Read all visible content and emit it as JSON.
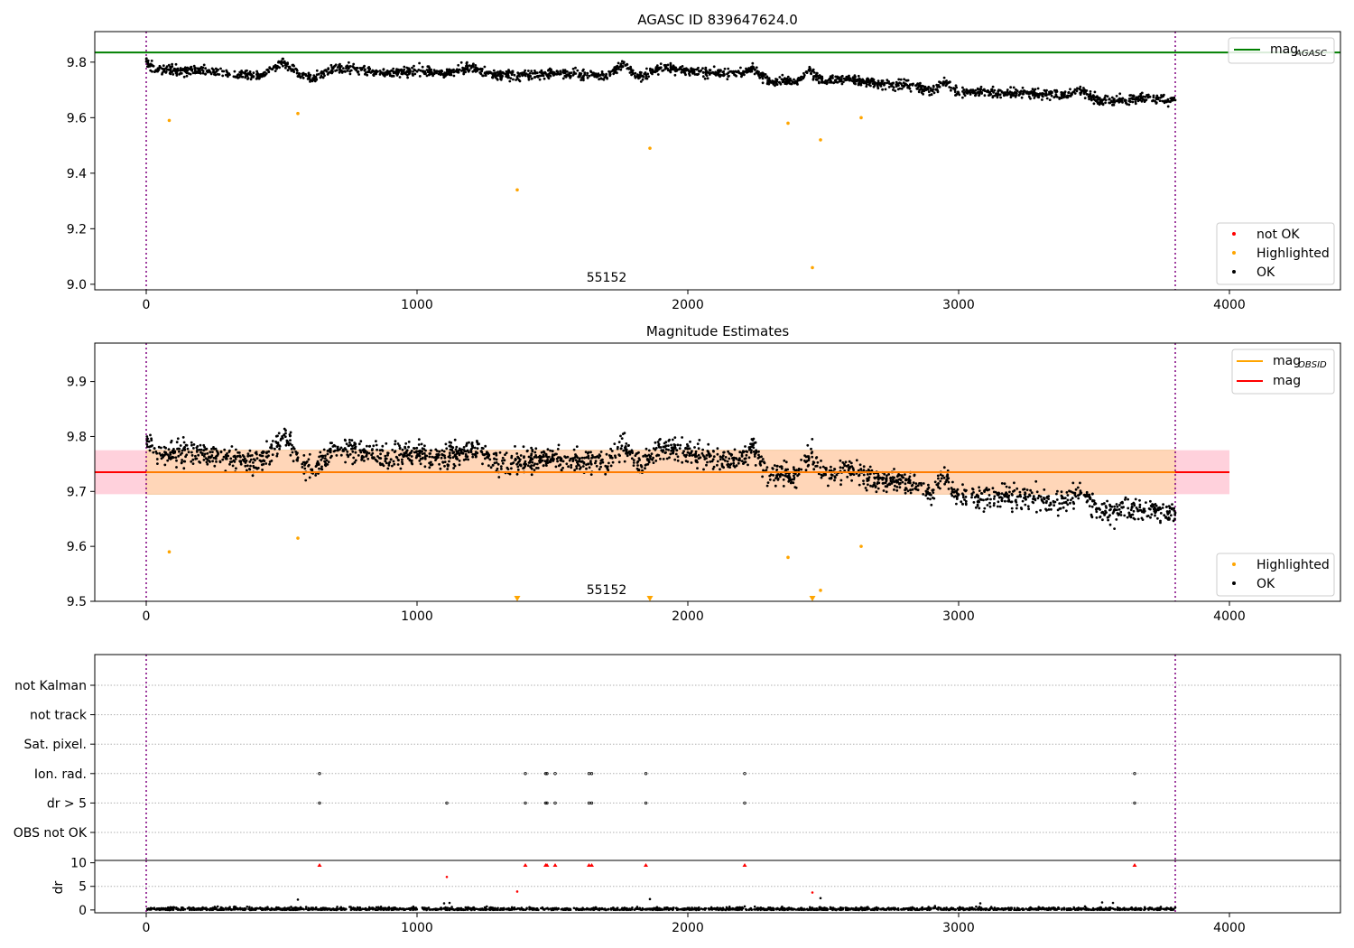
{
  "colors": {
    "ok": "#000000",
    "highlighted": "#ffa500",
    "not_ok": "#ff0000",
    "mag_agasc": "#008000",
    "mag_obsid": "#ffa500",
    "mag": "#ff0000",
    "obs_boundary": "#800080",
    "band_outer": "#ffd1dc",
    "band_inner": "#ffd6b8",
    "grid": "#b0b0b0"
  },
  "chart_data": [
    {
      "type": "scatter",
      "title": "AGASC ID 839647624.0",
      "xlim": [
        -190,
        4410
      ],
      "ylim": [
        8.98,
        9.91
      ],
      "xticks": [
        0,
        1000,
        2000,
        3000,
        4000
      ],
      "xtick_labels": [
        "0",
        "1000",
        "2000",
        "3000",
        "4000"
      ],
      "yticks": [
        9.0,
        9.2,
        9.4,
        9.6,
        9.8
      ],
      "ytick_labels": [
        "9.0",
        "9.2",
        "9.4",
        "9.6",
        "9.8"
      ],
      "obs_boundaries": [
        0,
        3800
      ],
      "annotation": {
        "text": "55152",
        "x": 1900,
        "y": 9.0
      },
      "mag_agasc": 9.835,
      "ok_trend": [
        [
          0,
          9.8
        ],
        [
          40,
          9.77
        ],
        [
          200,
          9.77
        ],
        [
          330,
          9.76
        ],
        [
          420,
          9.75
        ],
        [
          510,
          9.8
        ],
        [
          560,
          9.76
        ],
        [
          620,
          9.74
        ],
        [
          700,
          9.78
        ],
        [
          900,
          9.76
        ],
        [
          1000,
          9.77
        ],
        [
          1100,
          9.76
        ],
        [
          1200,
          9.78
        ],
        [
          1300,
          9.75
        ],
        [
          1500,
          9.76
        ],
        [
          1700,
          9.75
        ],
        [
          1760,
          9.79
        ],
        [
          1820,
          9.75
        ],
        [
          1900,
          9.78
        ],
        [
          2000,
          9.77
        ],
        [
          2100,
          9.76
        ],
        [
          2200,
          9.76
        ],
        [
          2240,
          9.78
        ],
        [
          2300,
          9.73
        ],
        [
          2400,
          9.73
        ],
        [
          2450,
          9.77
        ],
        [
          2500,
          9.73
        ],
        [
          2600,
          9.74
        ],
        [
          2700,
          9.72
        ],
        [
          2800,
          9.72
        ],
        [
          2900,
          9.7
        ],
        [
          2950,
          9.73
        ],
        [
          3000,
          9.69
        ],
        [
          3200,
          9.69
        ],
        [
          3400,
          9.68
        ],
        [
          3450,
          9.7
        ],
        [
          3520,
          9.66
        ],
        [
          3700,
          9.67
        ],
        [
          3800,
          9.66
        ]
      ],
      "ok_scatter": 0.012,
      "highlighted": [
        [
          85,
          9.59
        ],
        [
          560,
          9.615
        ],
        [
          1370,
          9.34
        ],
        [
          1860,
          9.49
        ],
        [
          2370,
          9.58
        ],
        [
          2460,
          9.06
        ],
        [
          2490,
          9.52
        ],
        [
          2640,
          9.6
        ]
      ],
      "not_ok": [],
      "legend_lines": [
        {
          "label": "mag",
          "sub": "AGASC",
          "color": "#008000"
        }
      ],
      "legend_points": [
        {
          "label": "not OK",
          "color": "#ff0000"
        },
        {
          "label": "Highlighted",
          "color": "#ffa500"
        },
        {
          "label": "OK",
          "color": "#000000"
        }
      ]
    },
    {
      "type": "scatter",
      "title": "Magnitude Estimates",
      "xlim": [
        -190,
        4410
      ],
      "ylim": [
        9.5,
        9.97
      ],
      "xticks": [
        0,
        1000,
        2000,
        3000,
        4000
      ],
      "xtick_labels": [
        "0",
        "1000",
        "2000",
        "3000",
        "4000"
      ],
      "yticks": [
        9.5,
        9.6,
        9.7,
        9.8,
        9.9
      ],
      "ytick_labels": [
        "9.5",
        "9.6",
        "9.7",
        "9.8",
        "9.9"
      ],
      "obs_boundaries": [
        0,
        3800
      ],
      "annotation": {
        "text": "55152",
        "x": 1900,
        "y": 9.5
      },
      "mag": 9.735,
      "mag_band": [
        9.695,
        9.775
      ],
      "mag_obsid": 9.735,
      "mag_obsid_band": [
        9.695,
        9.775
      ],
      "ok_scatter": 0.015,
      "highlighted": [
        [
          85,
          9.59
        ],
        [
          560,
          9.615
        ],
        [
          2370,
          9.58
        ],
        [
          2490,
          9.52
        ],
        [
          2640,
          9.6
        ]
      ],
      "highlighted_clipped_x": [
        1370,
        1860,
        2460
      ],
      "legend_lines": [
        {
          "label": "mag",
          "sub": "OBSID",
          "color": "#ffa500"
        },
        {
          "label": "mag",
          "sub": "",
          "color": "#ff0000"
        }
      ],
      "legend_points": [
        {
          "label": "Highlighted",
          "color": "#ffa500"
        },
        {
          "label": "OK",
          "color": "#000000"
        }
      ]
    },
    {
      "type": "scatter",
      "title": "",
      "xlim": [
        -190,
        4410
      ],
      "categories": [
        "not Kalman",
        "not track",
        "Sat. pixel.",
        "Ion. rad.",
        "dr > 5",
        "OBS not OK"
      ],
      "obs_boundaries": [
        0,
        3800
      ],
      "flags": {
        "Ion. rad.": [
          640,
          1400,
          1475,
          1480,
          1510,
          1635,
          1645,
          1845,
          2210,
          3650
        ],
        "dr > 5": [
          640,
          1110,
          1400,
          1475,
          1480,
          1510,
          1635,
          1645,
          1845,
          2210,
          3650
        ]
      },
      "dr": {
        "ylabel": "dr",
        "ylim": [
          -0.6,
          10.5
        ],
        "yticks": [
          0,
          5,
          10
        ],
        "ytick_labels": [
          "0",
          "5",
          "10"
        ],
        "clipped_x": [
          640,
          1400,
          1475,
          1480,
          1510,
          1635,
          1645,
          1845,
          2210,
          3650
        ],
        "red": [
          [
            1110,
            7.0
          ],
          [
            1370,
            3.9
          ],
          [
            2460,
            3.7
          ]
        ],
        "black_extra": [
          [
            560,
            2.2
          ],
          [
            1860,
            2.3
          ],
          [
            2490,
            2.5
          ],
          [
            1120,
            1.5
          ],
          [
            1100,
            1.4
          ],
          [
            3530,
            1.6
          ],
          [
            3570,
            1.5
          ],
          [
            3080,
            1.4
          ]
        ],
        "typical_max": 0.8
      }
    }
  ]
}
